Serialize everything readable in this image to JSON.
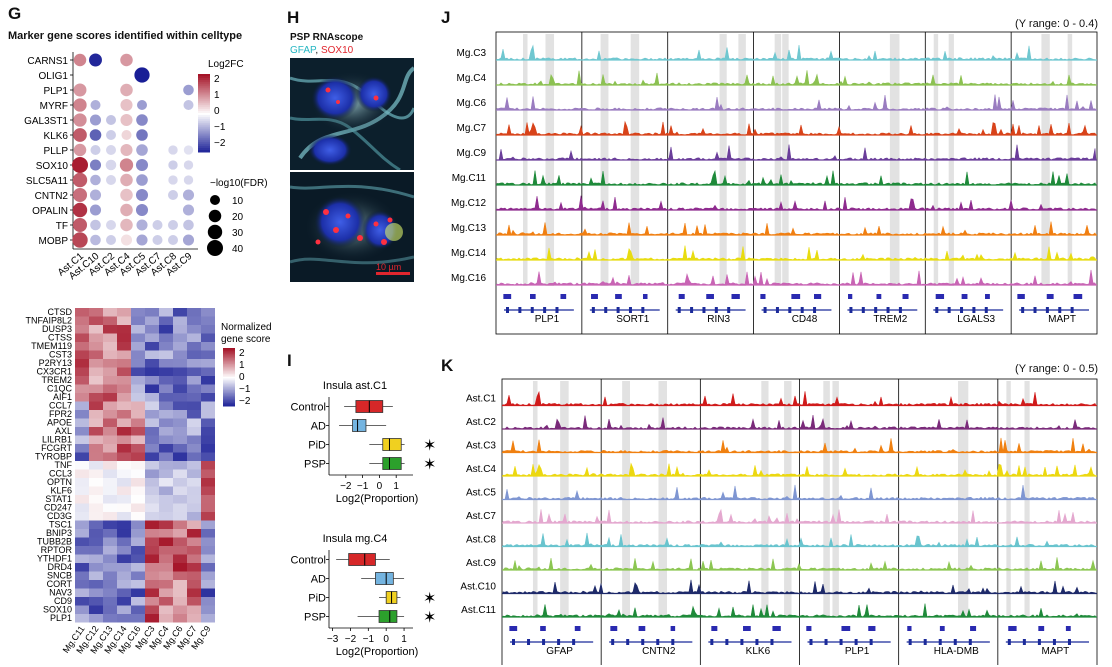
{
  "panels": {
    "G": {
      "label": "G",
      "title": "Marker gene scores identified within celltype",
      "dot_legend": {
        "color_title": "Log2FC",
        "color_ticks": [
          "2",
          "1",
          "0",
          "−1",
          "−2"
        ],
        "size_title": "−log10(FDR)",
        "size_ticks": [
          "10",
          "20",
          "30",
          "40"
        ]
      },
      "heat_legend": {
        "title_line1": "Normalized",
        "title_line2": "gene score",
        "ticks": [
          "2",
          "1",
          "0",
          "−1",
          "−2"
        ]
      }
    },
    "H": {
      "label": "H",
      "title": "PSP RNAscope",
      "stain1": "GFAP",
      "sep": ",",
      "stain2": "SOX10",
      "scalebar": "10 µm"
    },
    "I": {
      "label": "I",
      "xlabel": "Log2(Proportion)"
    },
    "J": {
      "label": "J",
      "yrange": "(Y range: 0 - 0.4)"
    },
    "K": {
      "label": "K",
      "yrange": "(Y range: 0 - 0.5)"
    }
  },
  "chart_data": [
    {
      "type": "heatmap",
      "title": "Marker gene scores identified within celltype",
      "rows": [
        "CARNS1",
        "OLIG1",
        "PLP1",
        "MYRF",
        "GAL3ST1",
        "KLK6",
        "PLLP",
        "SOX10",
        "SLC5A11",
        "CNTN2",
        "OPALIN",
        "TF",
        "MOBP"
      ],
      "columns": [
        "Ast.C1",
        "Ast.C10",
        "Ast.C2",
        "Ast.C4",
        "Ast.C5",
        "Ast.C7",
        "Ast.C8",
        "Ast.C9"
      ],
      "log2fc": [
        [
          1.2,
          -2.2,
          0,
          1.0,
          0,
          0,
          0,
          0
        ],
        [
          0,
          0,
          0,
          0,
          -2.3,
          0,
          0,
          0
        ],
        [
          1.0,
          0,
          0,
          0.8,
          0,
          0,
          0,
          -1.0
        ],
        [
          1.2,
          -0.8,
          0,
          0.6,
          -1.0,
          0,
          0,
          -0.6
        ],
        [
          1.1,
          -1.0,
          -0.6,
          0.6,
          -1.2,
          0,
          0,
          0
        ],
        [
          1.6,
          -1.6,
          -0.5,
          0.4,
          -1.4,
          0,
          0,
          0
        ],
        [
          1.0,
          -0.5,
          -0.4,
          0.7,
          -0.9,
          0,
          -0.4,
          -0.3
        ],
        [
          2.2,
          -1.3,
          -0.4,
          1.2,
          -1.2,
          0,
          -0.5,
          -0.4
        ],
        [
          1.6,
          -0.8,
          -0.4,
          0.8,
          -1.0,
          0,
          -0.4,
          -0.4
        ],
        [
          1.4,
          -0.8,
          0,
          0.6,
          -1.2,
          0,
          -0.5,
          -0.8
        ],
        [
          2.0,
          -1.0,
          0,
          0.8,
          -1.2,
          0,
          0,
          -0.8
        ],
        [
          1.6,
          -0.6,
          -0.4,
          0.7,
          -0.8,
          -0.5,
          -0.5,
          -0.6
        ],
        [
          1.8,
          -0.7,
          -0.5,
          0.3,
          -0.9,
          -0.5,
          -0.5,
          -0.9
        ]
      ],
      "neglog10fdr": [
        [
          20,
          22,
          0,
          20,
          0,
          0,
          0,
          0
        ],
        [
          0,
          0,
          0,
          0,
          35,
          0,
          0,
          0
        ],
        [
          22,
          0,
          0,
          20,
          0,
          0,
          0,
          12
        ],
        [
          24,
          10,
          0,
          18,
          10,
          0,
          0,
          10
        ],
        [
          24,
          14,
          10,
          18,
          16,
          0,
          0,
          0
        ],
        [
          26,
          16,
          10,
          10,
          16,
          0,
          0,
          0
        ],
        [
          20,
          10,
          10,
          18,
          16,
          0,
          8,
          8
        ],
        [
          40,
          14,
          12,
          24,
          18,
          0,
          8,
          8
        ],
        [
          30,
          12,
          10,
          20,
          16,
          0,
          8,
          8
        ],
        [
          28,
          14,
          0,
          20,
          18,
          0,
          10,
          14
        ],
        [
          30,
          14,
          0,
          20,
          18,
          0,
          0,
          14
        ],
        [
          28,
          12,
          10,
          20,
          14,
          10,
          10,
          12
        ],
        [
          36,
          12,
          10,
          14,
          14,
          10,
          10,
          14
        ]
      ],
      "color_range": [
        -2,
        2
      ],
      "size_ticks": [
        10,
        20,
        30,
        40
      ]
    },
    {
      "type": "heatmap",
      "rows": [
        "CTSD",
        "TNFAIP8L2",
        "DUSP3",
        "CTSS",
        "TMEM119",
        "CST3",
        "P2RY13",
        "CX3CR1",
        "TREM2",
        "C1QC",
        "AIF1",
        "CCL7",
        "FPR2",
        "APOE",
        "AXL",
        "LILRB1",
        "FCGRT",
        "TYROBP",
        "TNF",
        "CCL3",
        "OPTN",
        "KLF6",
        "STAT1",
        "CD247",
        "CD3G",
        "TSC1",
        "BNIP3",
        "TUBB2B",
        "RPTOR",
        "YTHDF1",
        "DRD4",
        "SNCB",
        "CORT",
        "NAV3",
        "CD9",
        "SOX10",
        "PLP1"
      ],
      "columns": [
        "Mg.C11",
        "Mg.C12",
        "Mg.C13",
        "Mg.C14",
        "Mg.C16",
        "Mg.C3",
        "Mg.C4",
        "Mg.C6",
        "Mg.C7",
        "Mg.C9"
      ],
      "color_range": [
        -2,
        2
      ]
    },
    {
      "type": "box",
      "title": "Insula ast.C1",
      "groups": [
        "Control",
        "AD",
        "PiD",
        "PSP"
      ],
      "colors": [
        "#d62728",
        "#74b4e0",
        "#f0d020",
        "#2ca02c"
      ],
      "boxes": [
        {
          "min": -2.1,
          "q1": -1.4,
          "median": -0.6,
          "q3": 0.2,
          "max": 0.8
        },
        {
          "min": -2.4,
          "q1": -1.6,
          "median": -1.3,
          "q3": -0.8,
          "max": 0.4
        },
        {
          "min": -0.6,
          "q1": 0.2,
          "median": 0.6,
          "q3": 1.3,
          "max": 1.5
        },
        {
          "min": -0.6,
          "q1": 0.2,
          "median": 0.6,
          "q3": 1.3,
          "max": 1.5
        }
      ],
      "significant": [
        false,
        false,
        true,
        true
      ],
      "xticks": [
        -2,
        -1,
        0,
        1
      ],
      "xlim": [
        -3,
        2
      ],
      "xlabel": "Log2(Proportion)"
    },
    {
      "type": "box",
      "title": "Insula mg.C4",
      "groups": [
        "Control",
        "AD",
        "PiD",
        "PSP"
      ],
      "colors": [
        "#d62728",
        "#74b4e0",
        "#f0d020",
        "#2ca02c"
      ],
      "boxes": [
        {
          "min": -2.8,
          "q1": -2.1,
          "median": -1.2,
          "q3": -0.6,
          "max": 0.2
        },
        {
          "min": -1.4,
          "q1": -0.6,
          "median": 0.0,
          "q3": 0.4,
          "max": 1.0
        },
        {
          "min": -0.4,
          "q1": 0.0,
          "median": 0.3,
          "q3": 0.6,
          "max": 0.8
        },
        {
          "min": -1.6,
          "q1": -0.4,
          "median": 0.2,
          "q3": 0.6,
          "max": 1.0
        }
      ],
      "significant": [
        false,
        false,
        true,
        true
      ],
      "xticks": [
        -3,
        -2,
        -1,
        0,
        1
      ],
      "xlim": [
        -3.2,
        1.5
      ],
      "xlabel": "Log2(Proportion)"
    },
    {
      "type": "area",
      "title": "(Y range: 0 - 0.4)",
      "ylim": [
        0,
        0.4
      ],
      "tracks": [
        "Mg.C3",
        "Mg.C4",
        "Mg.C6",
        "Mg.C7",
        "Mg.C9",
        "Mg.C11",
        "Mg.C12",
        "Mg.C13",
        "Mg.C14",
        "Mg.C16"
      ],
      "track_colors": [
        "#6fc7d0",
        "#8cc152",
        "#9a7cc0",
        "#d8431a",
        "#6a3d9a",
        "#1e8a3a",
        "#8e2b8e",
        "#f07f12",
        "#e8dc10",
        "#c864b4"
      ],
      "genes": [
        "PLP1",
        "SORT1",
        "RIN3",
        "CD48",
        "TREM2",
        "LGALS3",
        "MAPT"
      ]
    },
    {
      "type": "area",
      "title": "(Y range: 0 - 0.5)",
      "ylim": [
        0,
        0.5
      ],
      "tracks": [
        "Ast.C1",
        "Ast.C2",
        "Ast.C3",
        "Ast.C4",
        "Ast.C5",
        "Ast.C7",
        "Ast.C8",
        "Ast.C9",
        "Ast.C10",
        "Ast.C11"
      ],
      "track_colors": [
        "#d01b1b",
        "#7a2a7a",
        "#f08010",
        "#ecd810",
        "#7f96d2",
        "#e4a8cf",
        "#69c4ce",
        "#8cc652",
        "#1e2a6a",
        "#1f8a3a"
      ],
      "genes": [
        "GFAP",
        "CNTN2",
        "KLK6",
        "PLP1",
        "HLA-DMB",
        "MAPT"
      ]
    }
  ]
}
